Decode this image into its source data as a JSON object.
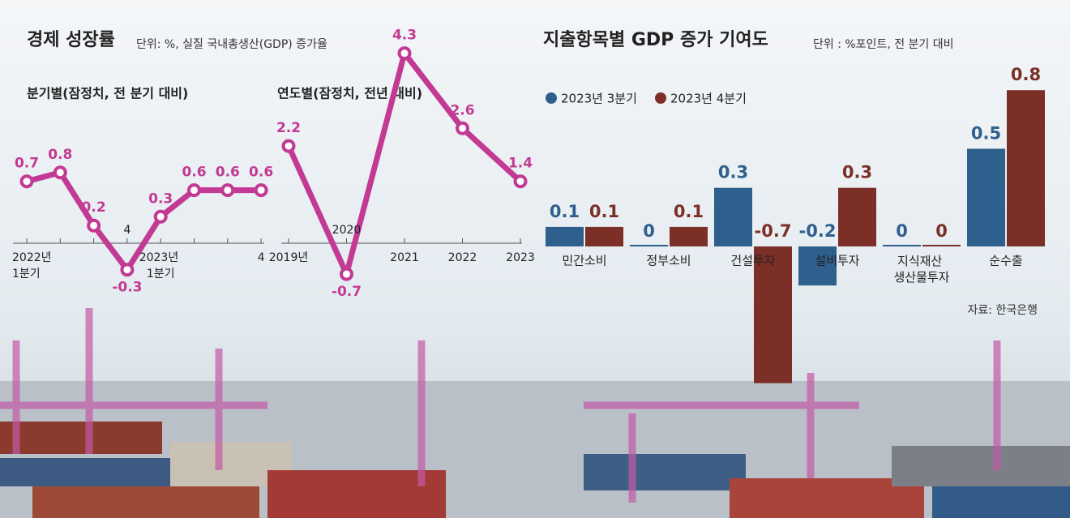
{
  "sections": [
    {
      "title": "경제 성장률",
      "subtitle": "단위: %, 실질 국내총생산(GDP) 증가율"
    },
    {
      "title": "지출항목별 GDP 증가 기여도",
      "subtitle": "단위 : %포인트, 전 분기 대비",
      "source": "자료: 한국은행"
    }
  ],
  "chart_data": [
    {
      "type": "line",
      "title": "분기별(잠정치, 전 분기 대비)",
      "categories": [
        "2022년 1분기",
        null,
        null,
        "4",
        "2023년 1분기",
        null,
        null,
        "4"
      ],
      "values": [
        0.7,
        0.8,
        0.2,
        -0.3,
        0.3,
        0.6,
        0.6,
        0.6
      ],
      "color": "#c23a93"
    },
    {
      "type": "line",
      "title": "연도별(잠정치, 전년 대비)",
      "categories": [
        "2019년",
        "2020",
        "2021",
        "2022",
        "2023"
      ],
      "values": [
        2.2,
        -0.7,
        4.3,
        2.6,
        1.4
      ],
      "color": "#c23a93"
    },
    {
      "type": "bar",
      "categories": [
        "민간소비",
        "정부소비",
        "건설투자",
        "설비투자",
        "지식재산 생산물투자",
        "순수출"
      ],
      "series": [
        {
          "name": "2023년 3분기",
          "color": "#2f5f8c",
          "values": [
            0.1,
            0,
            0.3,
            -0.2,
            0,
            0.5
          ]
        },
        {
          "name": "2023년 4분기",
          "color": "#7b2f27",
          "values": [
            0.1,
            0.1,
            -0.7,
            0.3,
            0,
            0.8
          ]
        }
      ]
    }
  ]
}
